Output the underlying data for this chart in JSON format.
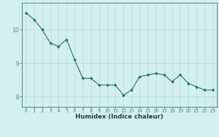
{
  "x": [
    0,
    1,
    2,
    3,
    4,
    5,
    6,
    7,
    8,
    9,
    10,
    11,
    12,
    13,
    14,
    15,
    16,
    17,
    18,
    19,
    20,
    21,
    22,
    23
  ],
  "y": [
    10.5,
    10.3,
    10.0,
    9.6,
    9.5,
    9.7,
    9.1,
    8.55,
    8.55,
    8.35,
    8.35,
    8.35,
    8.05,
    8.2,
    8.6,
    8.65,
    8.7,
    8.65,
    8.45,
    8.65,
    8.4,
    8.3,
    8.2,
    8.2
  ],
  "xlabel": "Humidex (Indice chaleur)",
  "ylabel": "",
  "title": "",
  "bg_color": "#d4f0ed",
  "line_color": "#2d7a6e",
  "marker_color": "#2d7a6e",
  "grid_color": "#b8ddd8",
  "axis_color": "#5a8a80",
  "tick_label_color": "#3a6a60",
  "xlabel_color": "#1a4040",
  "ylim": [
    7.7,
    10.8
  ],
  "xlim": [
    -0.5,
    23.5
  ],
  "yticks": [
    8,
    9,
    10
  ],
  "xticks": [
    0,
    1,
    2,
    3,
    4,
    5,
    6,
    7,
    8,
    9,
    10,
    11,
    12,
    13,
    14,
    15,
    16,
    17,
    18,
    19,
    20,
    21,
    22,
    23
  ],
  "xtick_labels": [
    "0",
    "1",
    "2",
    "3",
    "4",
    "5",
    "6",
    "7",
    "8",
    "9",
    "10",
    "11",
    "12",
    "13",
    "14",
    "15",
    "16",
    "17",
    "18",
    "19",
    "20",
    "21",
    "22",
    "23"
  ]
}
